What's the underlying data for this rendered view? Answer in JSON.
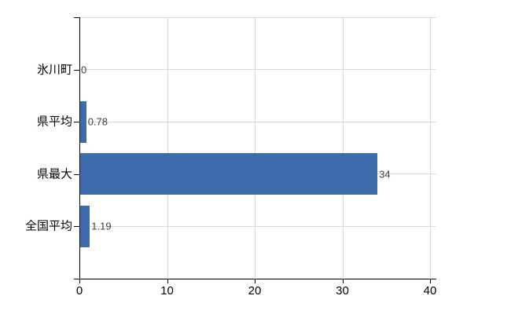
{
  "chart_data": {
    "type": "bar",
    "orientation": "horizontal",
    "title": "",
    "categories": [
      "氷川町",
      "県平均",
      "県最大",
      "全国平均"
    ],
    "values": [
      0,
      0.78,
      34,
      1.19
    ],
    "value_labels": [
      "0",
      "0.78",
      "34",
      "1.19"
    ],
    "xlabel": "",
    "ylabel": "",
    "xlim": [
      0,
      40
    ],
    "x_ticks": [
      0,
      10,
      20,
      30,
      40
    ],
    "x_tick_labels": [
      "0",
      "10",
      "20",
      "30",
      "40"
    ],
    "grid": "on",
    "legend": "none",
    "bar_color": "#3e6cad",
    "grid_color": "#d9d9d9",
    "axis_color": "#000000",
    "label_color": "#000000",
    "value_label_color": "#404040",
    "background_color": "#ffffff"
  }
}
